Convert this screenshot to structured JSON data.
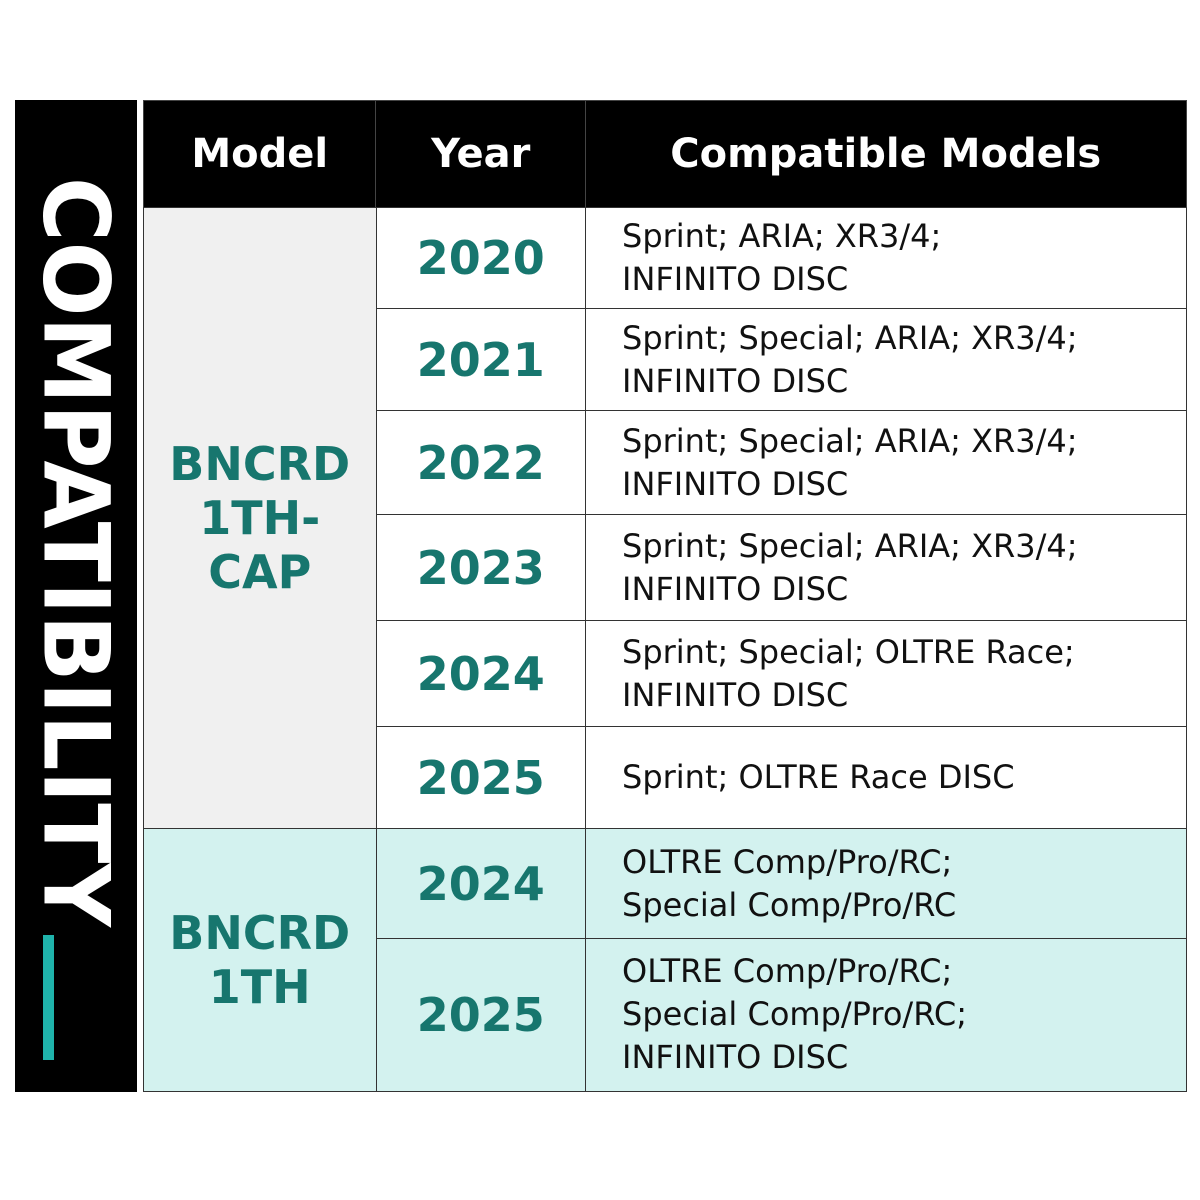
{
  "side_label": "COMPATIBILITY",
  "table": {
    "headers": [
      "Model",
      "Year",
      "Compatible Models"
    ],
    "groups": [
      {
        "model": [
          "BNCRD",
          "1TH-",
          "CAP"
        ],
        "rows": [
          {
            "year": "2020",
            "models": [
              "Sprint; ARIA; XR3/4;",
              "INFINITO DISC"
            ]
          },
          {
            "year": "2021",
            "models": [
              "Sprint; Special; ARIA; XR3/4;",
              "INFINITO DISC"
            ]
          },
          {
            "year": "2022",
            "models": [
              "Sprint; Special; ARIA; XR3/4;",
              "INFINITO DISC"
            ]
          },
          {
            "year": "2023",
            "models": [
              "Sprint; Special; ARIA; XR3/4;",
              "INFINITO DISC"
            ]
          },
          {
            "year": "2024",
            "models": [
              "Sprint; Special; OLTRE Race;",
              "INFINITO DISC"
            ]
          },
          {
            "year": "2025",
            "models": [
              "Sprint; OLTRE Race DISC"
            ]
          }
        ]
      },
      {
        "model": [
          "BNCRD",
          "1TH"
        ],
        "rows": [
          {
            "year": "2024",
            "models": [
              "OLTRE Comp/Pro/RC;",
              "Special Comp/Pro/RC"
            ]
          },
          {
            "year": "2025",
            "models": [
              "OLTRE Comp/Pro/RC;",
              "Special Comp/Pro/RC;",
              "INFINITO DISC"
            ]
          }
        ]
      }
    ]
  }
}
